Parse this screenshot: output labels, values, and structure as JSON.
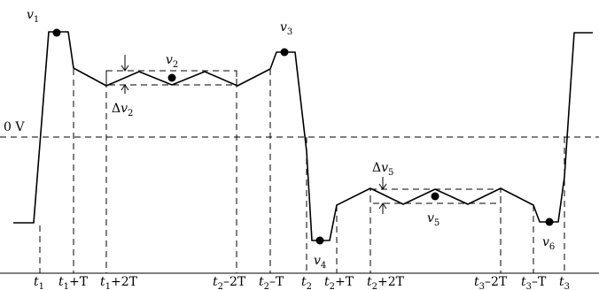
{
  "zero_label": "0 V",
  "sample_points": [
    {
      "var": "v",
      "sub": "1"
    },
    {
      "var": "v",
      "sub": "2"
    },
    {
      "var": "v",
      "sub": "3"
    },
    {
      "var": "v",
      "sub": "4"
    },
    {
      "var": "v",
      "sub": "5"
    },
    {
      "var": "v",
      "sub": "6"
    }
  ],
  "deltas": [
    {
      "prefix": "Δ",
      "var": "v",
      "sub": "2"
    },
    {
      "prefix": "Δ",
      "var": "v",
      "sub": "5"
    }
  ],
  "time_marks": [
    {
      "var": "t",
      "sub": "1",
      "suffix": ""
    },
    {
      "var": "t",
      "sub": "1",
      "suffix": "+T"
    },
    {
      "var": "t",
      "sub": "1",
      "suffix": "+2T"
    },
    {
      "var": "t",
      "sub": "2",
      "suffix": "–2T"
    },
    {
      "var": "t",
      "sub": "2",
      "suffix": "–T"
    },
    {
      "var": "t",
      "sub": "2",
      "suffix": ""
    },
    {
      "var": "t",
      "sub": "2",
      "suffix": "+T"
    },
    {
      "var": "t",
      "sub": "2",
      "suffix": "+2T"
    },
    {
      "var": "t",
      "sub": "3",
      "suffix": "–2T"
    },
    {
      "var": "t",
      "sub": "3",
      "suffix": "–T"
    },
    {
      "var": "t",
      "sub": "3",
      "suffix": ""
    }
  ]
}
